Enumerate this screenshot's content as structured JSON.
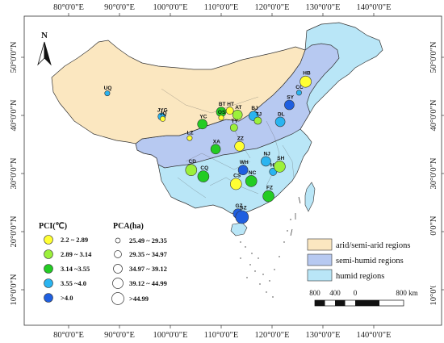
{
  "axes": {
    "top_ticks": [
      "80°0'0\"E",
      "90°0'0\"E",
      "100°0'0\"E",
      "110°0'0\"E",
      "120°0'0\"E",
      "130°0'0\"E",
      "140°0'0\"E"
    ],
    "bottom_ticks": [
      "80°0'0\"E",
      "90°0'0\"E",
      "100°0'0\"E",
      "110°0'0\"E",
      "120°0'0\"E",
      "130°0'0\"E",
      "140°0'0\"E"
    ],
    "left_ticks": [
      "50°0'0\"N",
      "40°0'0\"N",
      "30°0'0\"N",
      "20°0'0\"N",
      "10°0'0\"N"
    ],
    "right_ticks": [
      "50°0'0\"N",
      "40°0'0\"N",
      "30°0'0\"N",
      "20°0'0\"N",
      "10°0'0\"N"
    ]
  },
  "north_label": "N",
  "colors": {
    "arid": "#fbe7c0",
    "semi_humid": "#b7c9f1",
    "humid": "#b9e6f7",
    "pci_1": "#ffff33",
    "pci_2": "#9cf03b",
    "pci_3": "#23cc23",
    "pci_4": "#2ab4f0",
    "pci_5": "#1f5fe0"
  },
  "cities": [
    {
      "code": "UQ",
      "lon": 87.6,
      "lat": 43.8,
      "pci": 4,
      "pca": 1
    },
    {
      "code": "JYG",
      "lon": 98.3,
      "lat": 39.8,
      "pci": 4,
      "pca": 2
    },
    {
      "code": "JQ",
      "lon": 98.5,
      "lat": 39.4,
      "pci": 1,
      "pca": 1
    },
    {
      "code": "LZ",
      "lon": 103.8,
      "lat": 36.1,
      "pci": 1,
      "pca": 1
    },
    {
      "code": "YC",
      "lon": 106.3,
      "lat": 38.5,
      "pci": 3,
      "pca": 3
    },
    {
      "code": "BT",
      "lon": 110.0,
      "lat": 40.6,
      "pci": 3,
      "pca": 3
    },
    {
      "code": "HT",
      "lon": 111.7,
      "lat": 40.8,
      "pci": 1,
      "pca": 2
    },
    {
      "code": "OS",
      "lon": 110.0,
      "lat": 39.6,
      "pci": 1,
      "pca": 1
    },
    {
      "code": "AT",
      "lon": 113.2,
      "lat": 40.1,
      "pci": 2,
      "pca": 3
    },
    {
      "code": "TY",
      "lon": 112.5,
      "lat": 37.9,
      "pci": 2,
      "pca": 2
    },
    {
      "code": "BJ",
      "lon": 116.4,
      "lat": 39.9,
      "pci": 4,
      "pca": 3
    },
    {
      "code": "TJ",
      "lon": 117.2,
      "lat": 39.1,
      "pci": 2,
      "pca": 2
    },
    {
      "code": "DL",
      "lon": 121.6,
      "lat": 38.9,
      "pci": 4,
      "pca": 3
    },
    {
      "code": "SY",
      "lon": 123.4,
      "lat": 41.8,
      "pci": 5,
      "pca": 3
    },
    {
      "code": "CC",
      "lon": 125.3,
      "lat": 43.9,
      "pci": 4,
      "pca": 1
    },
    {
      "code": "HB",
      "lon": 126.6,
      "lat": 45.8,
      "pci": 1,
      "pca": 4
    },
    {
      "code": "ZZ",
      "lon": 113.6,
      "lat": 34.7,
      "pci": 1,
      "pca": 3
    },
    {
      "code": "XA",
      "lon": 108.9,
      "lat": 34.2,
      "pci": 3,
      "pca": 3
    },
    {
      "code": "CD",
      "lon": 104.1,
      "lat": 30.6,
      "pci": 2,
      "pca": 4
    },
    {
      "code": "CQ",
      "lon": 106.5,
      "lat": 29.5,
      "pci": 3,
      "pca": 4
    },
    {
      "code": "WH",
      "lon": 114.3,
      "lat": 30.6,
      "pci": 5,
      "pca": 3
    },
    {
      "code": "CS",
      "lon": 112.9,
      "lat": 28.2,
      "pci": 1,
      "pca": 4
    },
    {
      "code": "NC",
      "lon": 115.9,
      "lat": 28.7,
      "pci": 3,
      "pca": 4
    },
    {
      "code": "NJ",
      "lon": 118.8,
      "lat": 32.1,
      "pci": 4,
      "pca": 3
    },
    {
      "code": "HZ",
      "lon": 120.2,
      "lat": 30.3,
      "pci": 4,
      "pca": 2
    },
    {
      "code": "SH",
      "lon": 121.5,
      "lat": 31.2,
      "pci": 2,
      "pca": 4
    },
    {
      "code": "FZ",
      "lon": 119.3,
      "lat": 26.1,
      "pci": 3,
      "pca": 4
    },
    {
      "code": "GZ",
      "lon": 113.3,
      "lat": 23.1,
      "pci": 5,
      "pca": 3
    },
    {
      "code": "SZ",
      "lon": 114.1,
      "lat": 22.5,
      "pci": 5,
      "pca": 5
    }
  ],
  "legend_pci": {
    "title": "PCI(℃)",
    "items": [
      "2.2 ~ 2.89",
      "2.89 ~ 3.14",
      "3.14 ~3.55",
      "3.55 ~4.0",
      ">4.0"
    ]
  },
  "legend_pca": {
    "title": "PCA(ha)",
    "items": [
      "25.49 ~ 29.35",
      "29.35 ~ 34.97",
      "34.97 ~ 39.12",
      "39.12 ~ 44.99",
      ">44.99"
    ]
  },
  "legend_regions": [
    "arid/semi-arid regions",
    "semi-humid regions",
    "humid regions"
  ],
  "scale_bar": {
    "labels": [
      "800",
      "400",
      "0",
      "800 km"
    ]
  }
}
